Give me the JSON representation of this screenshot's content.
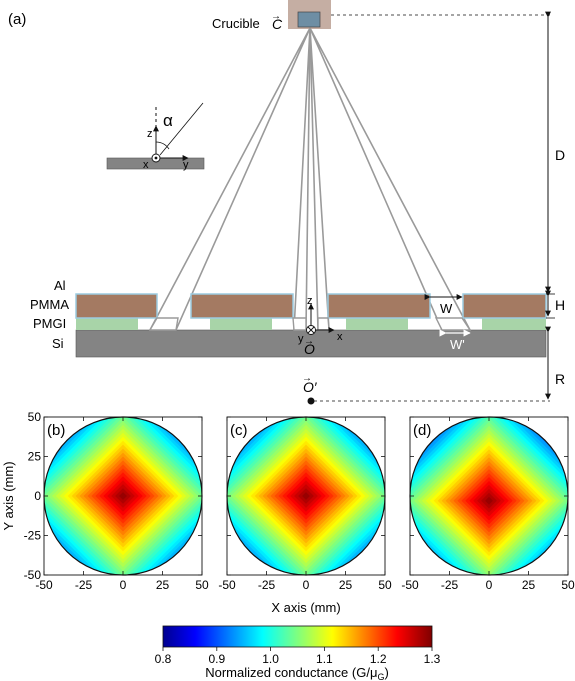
{
  "schematic": {
    "panel_label": "(a)",
    "crucible_label": "Crucible",
    "crucible_vec": "C",
    "alpha_label": "α",
    "axis_z": "z",
    "axis_x": "x",
    "axis_y": "y",
    "layer_labels": [
      "Al",
      "PMMA",
      "PMGI",
      "Si"
    ],
    "dim_D": "D",
    "dim_H": "H",
    "dim_R": "R",
    "dim_W": "W",
    "dim_Wprime": "W'",
    "origin_vec": "O",
    "origin_prime_vec": "O",
    "origin_prime_mark": "′"
  },
  "maps": {
    "panels": [
      "(b)",
      "(c)",
      "(d)"
    ],
    "xlabel": "X axis (mm)",
    "ylabel": "Y axis (mm)"
  },
  "colorbar": {
    "label": "Normalized conductance (G/μ",
    "label_sub": "G",
    "label_end": ")",
    "ticks": [
      "0.8",
      "0.9",
      "1.0",
      "1.1",
      "1.2",
      "1.3"
    ]
  },
  "chart_data": [
    {
      "type": "heatmap",
      "panel": "(b)",
      "xlabel": "X axis (mm)",
      "ylabel": "Y axis (mm)",
      "xlim": [
        -50,
        50
      ],
      "ylim": [
        -50,
        50
      ],
      "xticks": [
        "-50",
        "-25",
        "0",
        "25",
        "50"
      ],
      "yticks": [
        "50",
        "25",
        "0",
        "-25",
        "-50"
      ],
      "center": [
        0,
        0
      ],
      "max_value": 1.3,
      "edge_value": 0.8,
      "clim": [
        0.8,
        1.3
      ]
    },
    {
      "type": "heatmap",
      "panel": "(c)",
      "xlabel": "X axis (mm)",
      "xlim": [
        -50,
        50
      ],
      "ylim": [
        -50,
        50
      ],
      "xticks": [
        "-50",
        "-25",
        "0",
        "25",
        "50"
      ],
      "center": [
        0,
        0
      ],
      "max_value": 1.3,
      "edge_value": 0.8,
      "clim": [
        0.8,
        1.3
      ]
    },
    {
      "type": "heatmap",
      "panel": "(d)",
      "xlabel": "X axis (mm)",
      "xlim": [
        -50,
        50
      ],
      "ylim": [
        -50,
        50
      ],
      "xticks": [
        "-50",
        "-25",
        "0",
        "25",
        "50"
      ],
      "center": [
        0,
        -3
      ],
      "max_value": 1.3,
      "edge_value": 0.8,
      "clim": [
        0.8,
        1.3
      ]
    }
  ],
  "colors": {
    "crucible_body": "#c5aea3",
    "crucible_source": "#6e8ea4",
    "pmma": "#a47a62",
    "pmgi": "#a8d4a8",
    "si": "#848484",
    "al": "#9ccbe0",
    "beam": "#9a9a9a"
  }
}
